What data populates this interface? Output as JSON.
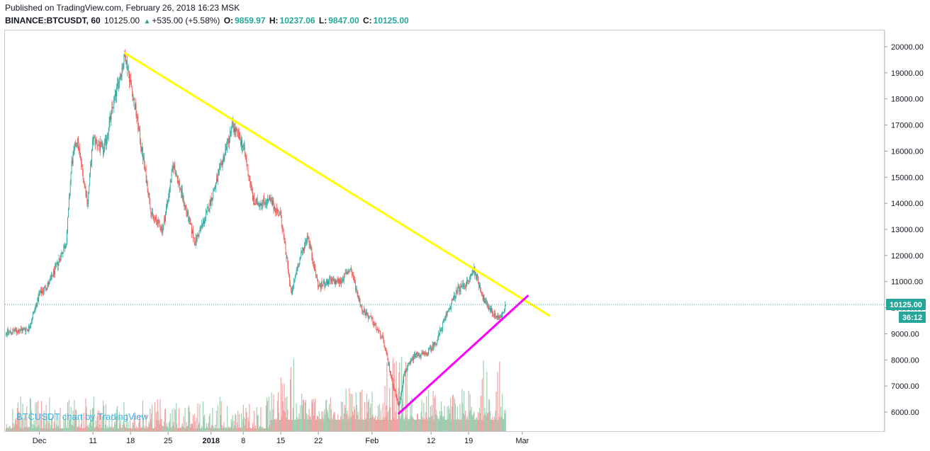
{
  "header": {
    "published": "Published on TradingView.com, February 26, 2018 16:23 MSK",
    "symbol": "BINANCE:BTCUSDT, 60",
    "last": "10125.00",
    "change": "+535.00 (+5.58%)",
    "o_label": "O:",
    "o_value": "9859.97",
    "h_label": "H:",
    "h_value": "10237.06",
    "l_label": "L:",
    "l_value": "9847.00",
    "c_label": "C:",
    "c_value": "10125.00"
  },
  "watermark": "BTCUSDT chart by TradingView",
  "price_badge": "10125.00",
  "time_badge": "36:12",
  "colors": {
    "up": "#26a69a",
    "down": "#ef5350",
    "vol_up": "#8fc9a7",
    "vol_down": "#f09494",
    "trend_top": "#ffff00",
    "trend_bottom": "#ff00ff",
    "price_line": "#26a69a"
  },
  "chart_data": {
    "type": "candlestick",
    "ylim": [
      5200,
      20800
    ],
    "y_ticks": [
      "6000.00",
      "7000.00",
      "8000.00",
      "9000.00",
      "10000.00",
      "11000.00",
      "12000.00",
      "13000.00",
      "14000.00",
      "15000.00",
      "16000.00",
      "17000.00",
      "18000.00",
      "19000.00",
      "20000.00"
    ],
    "x_ticks": [
      "Dec",
      "11",
      "18",
      "25",
      "2018",
      "8",
      "15",
      "22",
      "Feb",
      "12",
      "19",
      "Mar"
    ],
    "price_path": [
      [
        "2017-11-29",
        9200
      ],
      [
        "2017-12-01",
        10500
      ],
      [
        "2017-12-03",
        11000
      ],
      [
        "2017-12-06",
        12500
      ],
      [
        "2017-12-07",
        15500
      ],
      [
        "2017-12-08",
        16500
      ],
      [
        "2017-12-10",
        14000
      ],
      [
        "2017-12-11",
        16500
      ],
      [
        "2017-12-13",
        16000
      ],
      [
        "2017-12-15",
        18000
      ],
      [
        "2017-12-17",
        19700
      ],
      [
        "2017-12-19",
        17500
      ],
      [
        "2017-12-22",
        13500
      ],
      [
        "2017-12-24",
        13000
      ],
      [
        "2017-12-26",
        15500
      ],
      [
        "2017-12-28",
        14000
      ],
      [
        "2017-12-30",
        12500
      ],
      [
        "2018-01-01",
        13500
      ],
      [
        "2018-01-03",
        14800
      ],
      [
        "2018-01-06",
        17000
      ],
      [
        "2018-01-08",
        16200
      ],
      [
        "2018-01-10",
        14000
      ],
      [
        "2018-01-13",
        14100
      ],
      [
        "2018-01-15",
        13500
      ],
      [
        "2018-01-17",
        10500
      ],
      [
        "2018-01-18",
        11500
      ],
      [
        "2018-01-20",
        12800
      ],
      [
        "2018-01-22",
        10800
      ],
      [
        "2018-01-24",
        11000
      ],
      [
        "2018-01-26",
        11000
      ],
      [
        "2018-01-28",
        11500
      ],
      [
        "2018-01-30",
        10000
      ],
      [
        "2018-02-01",
        9500
      ],
      [
        "2018-02-03",
        8800
      ],
      [
        "2018-02-05",
        7000
      ],
      [
        "2018-02-06",
        6200
      ],
      [
        "2018-02-07",
        7500
      ],
      [
        "2018-02-09",
        8200
      ],
      [
        "2018-02-11",
        8200
      ],
      [
        "2018-02-13",
        8700
      ],
      [
        "2018-02-15",
        9800
      ],
      [
        "2018-02-17",
        10700
      ],
      [
        "2018-02-19",
        11000
      ],
      [
        "2018-02-20",
        11500
      ],
      [
        "2018-02-22",
        10200
      ],
      [
        "2018-02-24",
        9700
      ],
      [
        "2018-02-25",
        9600
      ],
      [
        "2018-02-26",
        10125
      ]
    ],
    "trendlines": [
      {
        "color": "trend_top",
        "from": [
          "2017-12-17",
          19750
        ],
        "to": [
          "2018-03-06",
          9700
        ]
      },
      {
        "color": "trend_bottom",
        "from": [
          "2018-02-06",
          5950
        ],
        "to": [
          "2018-03-02",
          10450
        ]
      }
    ],
    "last_price": 10125.0
  }
}
